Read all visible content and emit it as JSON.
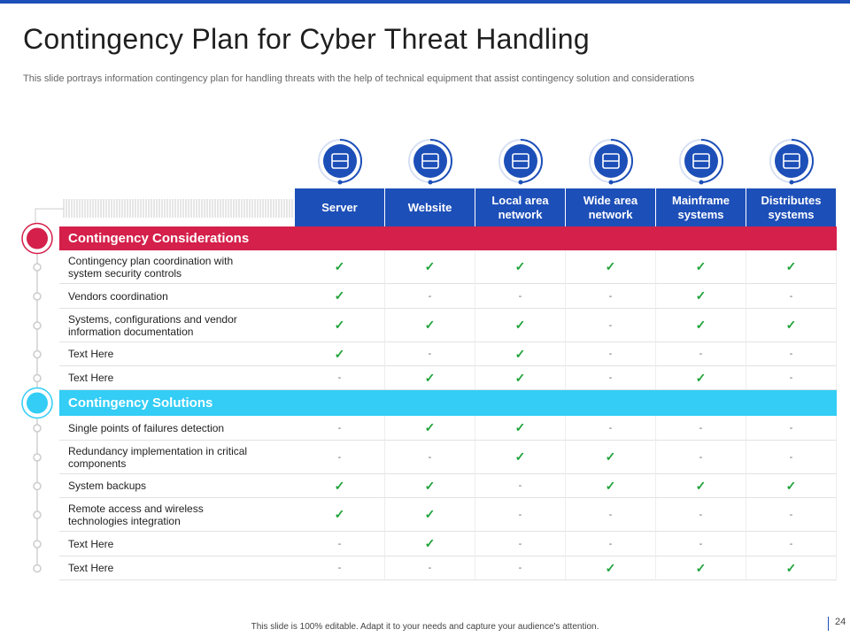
{
  "title": "Contingency Plan for Cyber Threat Handling",
  "subtitle": "This slide portrays information contingency plan for handling threats with the help of technical equipment that assist contingency solution and considerations",
  "table": {
    "columns": [
      "Server",
      "Website",
      "Local area network",
      "Wide area network",
      "Mainframe systems",
      "Distributes systems"
    ],
    "sections": [
      {
        "name": "Contingency Considerations",
        "rows": [
          {
            "label": "Contingency plan coordination with system security controls",
            "cells": [
              "✓",
              "✓",
              "✓",
              "✓",
              "✓",
              "✓"
            ]
          },
          {
            "label": "Vendors coordination",
            "cells": [
              "✓",
              "-",
              "-",
              "-",
              "✓",
              "-"
            ]
          },
          {
            "label": "Systems, configurations and vendor information documentation",
            "cells": [
              "✓",
              "✓",
              "✓",
              "-",
              "✓",
              "✓"
            ]
          },
          {
            "label": "Text Here",
            "cells": [
              "✓",
              "-",
              "✓",
              "-",
              "-",
              "-"
            ]
          },
          {
            "label": "Text Here",
            "cells": [
              "-",
              "✓",
              "✓",
              "-",
              "✓",
              "-"
            ]
          }
        ]
      },
      {
        "name": "Contingency Solutions",
        "rows": [
          {
            "label": "Single points of failures detection",
            "cells": [
              "-",
              "✓",
              "✓",
              "-",
              "-",
              "-"
            ]
          },
          {
            "label": "Redundancy implementation in critical components",
            "cells": [
              "-",
              "-",
              "✓",
              "✓",
              "-",
              "-"
            ]
          },
          {
            "label": "System backups",
            "cells": [
              "✓",
              "✓",
              "-",
              "✓",
              "✓",
              "✓"
            ]
          },
          {
            "label": "Remote access and wireless technologies integration",
            "cells": [
              "✓",
              "✓",
              "-",
              "-",
              "-",
              "-"
            ]
          },
          {
            "label": "Text Here",
            "cells": [
              "-",
              "✓",
              "-",
              "-",
              "-",
              "-"
            ]
          },
          {
            "label": "Text Here",
            "cells": [
              "-",
              "-",
              "-",
              "✓",
              "✓",
              "✓"
            ]
          }
        ]
      }
    ]
  },
  "footer": "This slide is 100% editable. Adapt it to your needs and capture your audience's attention.",
  "page_number": "24"
}
